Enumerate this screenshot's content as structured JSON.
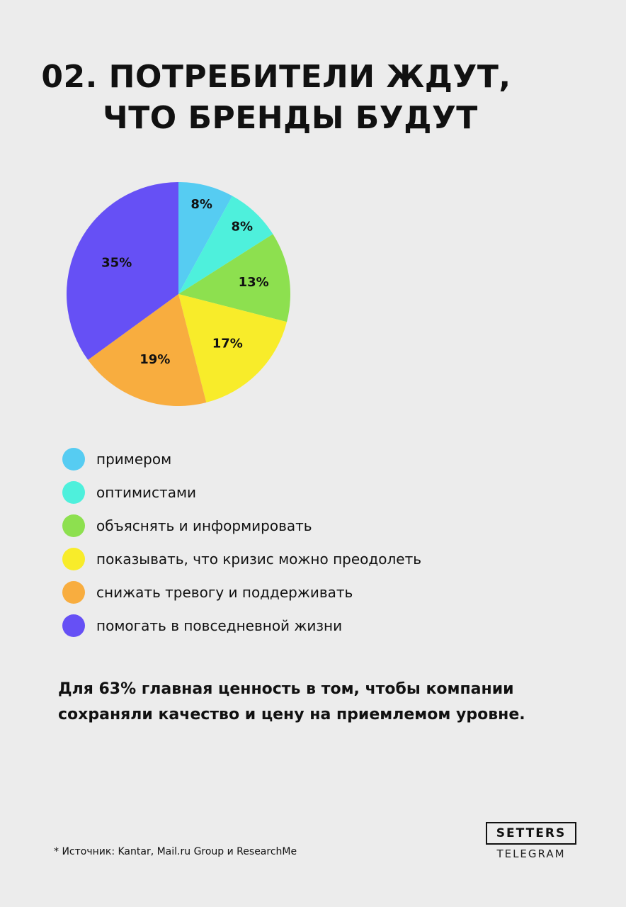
{
  "title": {
    "line1": "02. ПОТРЕБИТЕЛИ ЖДУТ,",
    "line2": "ЧТО БРЕНДЫ БУДУТ"
  },
  "chart_data": {
    "type": "pie",
    "title": "",
    "slices": [
      {
        "name": "примером",
        "value": 8,
        "label": "8%",
        "color": "#56ccf2"
      },
      {
        "name": "оптимистами",
        "value": 8,
        "label": "8%",
        "color": "#4ef0dc"
      },
      {
        "name": "объяснять и информировать",
        "value": 13,
        "label": "13%",
        "color": "#8de04f"
      },
      {
        "name": "показывать, что кризис можно преодолеть",
        "value": 17,
        "label": "17%",
        "color": "#f8ec2a"
      },
      {
        "name": "снижать тревогу и поддерживать",
        "value": 19,
        "label": "19%",
        "color": "#f8ad3f"
      },
      {
        "name": "помогать в повседневной жизни",
        "value": 35,
        "label": "35%",
        "color": "#6650f5"
      }
    ],
    "legend_position": "bottom"
  },
  "legend": {
    "items": [
      {
        "label": "примером",
        "color": "#56ccf2"
      },
      {
        "label": "оптимистами",
        "color": "#4ef0dc"
      },
      {
        "label": "объяснять и информировать",
        "color": "#8de04f"
      },
      {
        "label": "показывать, что кризис можно преодолеть",
        "color": "#f8ec2a"
      },
      {
        "label": "снижать тревогу и поддерживать",
        "color": "#f8ad3f"
      },
      {
        "label": "помогать в повседневной жизни",
        "color": "#6650f5"
      }
    ]
  },
  "note": {
    "line1": "Для 63% главная ценность в том, чтобы компании",
    "line2": "сохраняли качество и цену на приемлемом уровне."
  },
  "source": "* Источник: Kantar, Mail.ru Group и ResearchMe",
  "brand": {
    "name": "SETTERS",
    "sub": "TELEGRAM"
  }
}
